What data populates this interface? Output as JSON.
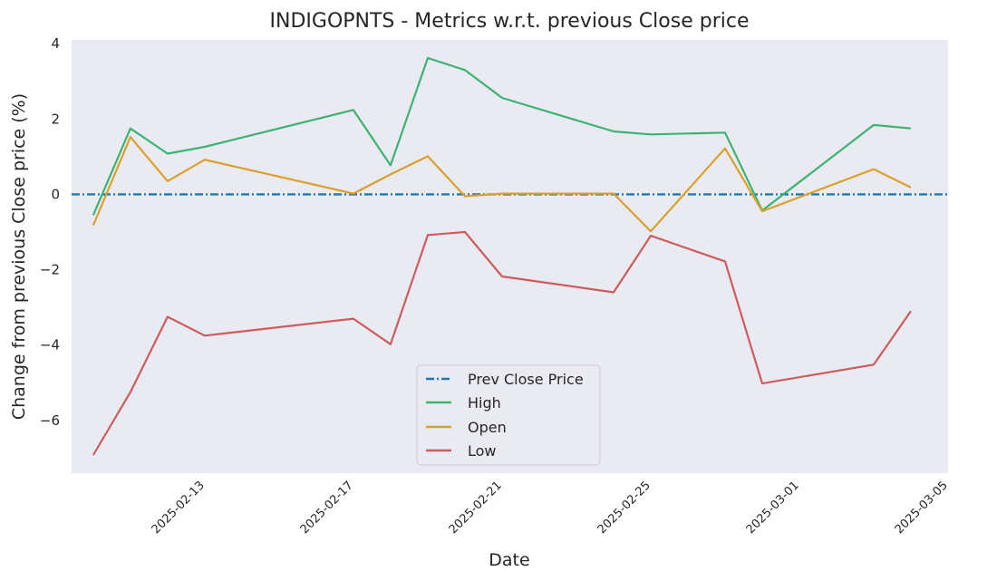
{
  "chart_data": {
    "type": "line",
    "title": "INDIGOPNTS - Metrics w.r.t. previous Close price",
    "xlabel": "Date",
    "ylabel": "Change from previous Close price (%)",
    "x": [
      "2025-02-10",
      "2025-02-11",
      "2025-02-12",
      "2025-02-13",
      "2025-02-17",
      "2025-02-18",
      "2025-02-19",
      "2025-02-20",
      "2025-02-21",
      "2025-02-24",
      "2025-02-25",
      "2025-02-27",
      "2025-02-28",
      "2025-03-03",
      "2025-03-04"
    ],
    "x_ticks": [
      "2025-02-13",
      "2025-02-17",
      "2025-02-21",
      "2025-02-25",
      "2025-03-01",
      "2025-03-05"
    ],
    "xlim": [
      "2025-02-09T10:00",
      "2025-03-05T00:00"
    ],
    "ylim": [
      -7.4,
      4.1
    ],
    "y_ticks": [
      4,
      2,
      0,
      -2,
      -4,
      -6
    ],
    "y_tick_labels": [
      "4",
      "2",
      "0",
      "−2",
      "−4",
      "−6"
    ],
    "grid": false,
    "legend_position": "lower-center",
    "reference_line": {
      "name": "Prev Close Price",
      "value": 0,
      "color": "#1f77b4",
      "style": "dash-dot"
    },
    "series": [
      {
        "name": "High",
        "color": "#3cb371",
        "values": [
          -0.55,
          1.75,
          1.08,
          1.26,
          2.24,
          0.77,
          3.62,
          3.3,
          2.56,
          1.67,
          1.59,
          1.64,
          -0.43,
          1.84,
          1.75
        ]
      },
      {
        "name": "Open",
        "color": "#daa02b",
        "values": [
          -0.82,
          1.52,
          0.35,
          0.92,
          0.02,
          0.53,
          1.01,
          -0.05,
          0.02,
          0.02,
          -0.98,
          1.22,
          -0.45,
          0.67,
          0.18
        ]
      },
      {
        "name": "Low",
        "color": "#cd5c5c",
        "values": [
          -6.92,
          -5.25,
          -3.25,
          -3.75,
          -3.3,
          -3.98,
          -1.08,
          -1.0,
          -2.18,
          -2.6,
          -1.1,
          -1.78,
          -5.02,
          -4.52,
          -3.1
        ]
      }
    ]
  }
}
